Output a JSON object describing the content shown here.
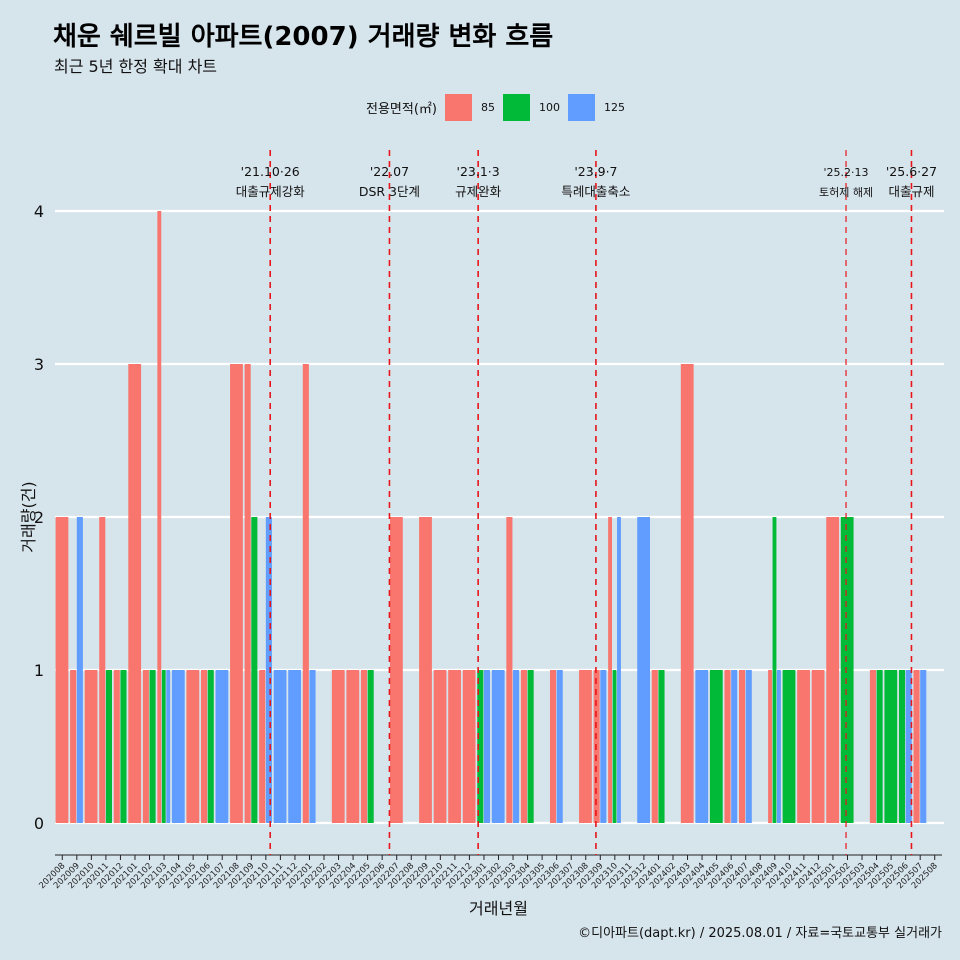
{
  "title": "채운 쉐르빌 아파트(2007) 거래량 변화 흐름",
  "subtitle": "최근 5년 한정 확대 차트",
  "caption": "©디아파트(dapt.kr) / 2025.08.01 / 자료=국토교통부 실거래가",
  "legend": {
    "title": "전용면적(㎡)",
    "items": [
      {
        "label": "85",
        "color": "#f8766d"
      },
      {
        "label": "100",
        "color": "#00ba38"
      },
      {
        "label": "125",
        "color": "#619cff"
      }
    ]
  },
  "chart_data": {
    "type": "bar",
    "xlabel": "거래년월",
    "ylabel": "거래량(건)",
    "ylim": [
      0,
      4
    ],
    "yticks": [
      0,
      1,
      2,
      3,
      4
    ],
    "categories": [
      "202008",
      "202009",
      "202010",
      "202011",
      "202012",
      "202101",
      "202102",
      "202103",
      "202104",
      "202105",
      "202106",
      "202107",
      "202108",
      "202109",
      "202110",
      "202111",
      "202112",
      "202201",
      "202202",
      "202203",
      "202204",
      "202205",
      "202206",
      "202207",
      "202208",
      "202209",
      "202210",
      "202211",
      "202212",
      "202301",
      "202302",
      "202303",
      "202304",
      "202305",
      "202306",
      "202307",
      "202308",
      "202309",
      "202310",
      "202311",
      "202312",
      "202401",
      "202402",
      "202403",
      "202404",
      "202405",
      "202406",
      "202407",
      "202408",
      "202409",
      "202410",
      "202411",
      "202412",
      "202501",
      "202502",
      "202503",
      "202504",
      "202505",
      "202506",
      "202507",
      "202508"
    ],
    "series": [
      {
        "name": "85",
        "color": "#f8766d",
        "values": [
          2,
          1,
          1,
          2,
          1,
          3,
          1,
          4,
          0,
          1,
          1,
          0,
          3,
          3,
          1,
          0,
          0,
          3,
          0,
          1,
          1,
          1,
          0,
          2,
          0,
          2,
          1,
          1,
          1,
          0,
          0,
          2,
          1,
          0,
          1,
          0,
          1,
          1,
          2,
          0,
          0,
          1,
          0,
          3,
          0,
          0,
          1,
          1,
          0,
          1,
          0,
          1,
          1,
          2,
          0,
          0,
          1,
          0,
          0,
          1,
          0
        ]
      },
      {
        "name": "100",
        "color": "#00ba38",
        "values": [
          0,
          0,
          0,
          1,
          1,
          0,
          1,
          1,
          0,
          0,
          1,
          0,
          0,
          2,
          0,
          0,
          0,
          0,
          0,
          0,
          0,
          1,
          0,
          0,
          0,
          0,
          0,
          0,
          0,
          1,
          0,
          0,
          1,
          0,
          0,
          0,
          0,
          0,
          1,
          0,
          0,
          1,
          0,
          0,
          0,
          1,
          0,
          0,
          0,
          2,
          1,
          0,
          0,
          0,
          2,
          0,
          1,
          1,
          1,
          0,
          0
        ]
      },
      {
        "name": "125",
        "color": "#619cff",
        "values": [
          0,
          2,
          0,
          0,
          0,
          0,
          0,
          1,
          1,
          0,
          0,
          1,
          0,
          0,
          2,
          1,
          1,
          1,
          0,
          0,
          0,
          0,
          0,
          0,
          0,
          0,
          0,
          0,
          0,
          1,
          1,
          1,
          0,
          0,
          1,
          0,
          0,
          1,
          2,
          0,
          2,
          0,
          0,
          0,
          1,
          0,
          1,
          1,
          0,
          1,
          0,
          0,
          0,
          0,
          0,
          0,
          0,
          0,
          1,
          1,
          0
        ]
      }
    ],
    "events": [
      {
        "date": "'21.10·26",
        "label": "대출규제강화",
        "after": "202110",
        "frac": 0.8,
        "small": false
      },
      {
        "date": "'22.07",
        "label": "DSR 3단계",
        "after": "202207",
        "frac": 0.0,
        "small": false
      },
      {
        "date": "'23.1·3",
        "label": "규제완화",
        "after": "202301",
        "frac": 0.1,
        "small": false
      },
      {
        "date": "'23.9·7",
        "label": "특례대출축소",
        "after": "202309",
        "frac": 0.2,
        "small": false
      },
      {
        "date": "'25.2·13",
        "label": "토허제 해제",
        "after": "202502",
        "frac": 0.4,
        "small": true
      },
      {
        "date": "'25.6·27",
        "label": "대출규제",
        "after": "202506",
        "frac": 0.9,
        "small": false
      }
    ]
  }
}
